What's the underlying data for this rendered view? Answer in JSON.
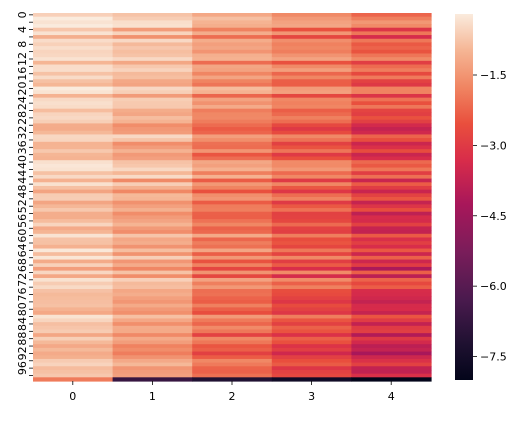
{
  "chart_data": {
    "type": "heatmap",
    "title": "",
    "xlabel": "",
    "ylabel": "",
    "x_categories": [
      "0",
      "1",
      "2",
      "3",
      "4"
    ],
    "y_tick_labels": [
      "0",
      "4",
      "8",
      "12",
      "16",
      "20",
      "24",
      "28",
      "32",
      "36",
      "40",
      "44",
      "48",
      "52",
      "56",
      "60",
      "64",
      "68",
      "72",
      "76",
      "80",
      "84",
      "88",
      "92",
      "96"
    ],
    "n_rows": 100,
    "colorbar": {
      "vmin": -8.0,
      "vmax": -0.2,
      "ticks": [
        -1.5,
        -3.0,
        -4.5,
        -6.0,
        -7.5
      ],
      "tick_labels": [
        "−1.5",
        "−3.0",
        "−4.5",
        "−6.0",
        "−7.5"
      ]
    },
    "colormap": "rocket",
    "column_profiles": [
      {
        "column": "0",
        "typical_value": -0.6,
        "last_row_value": -1.9
      },
      {
        "column": "1",
        "typical_value": -0.9,
        "last_row_value": -6.7
      },
      {
        "column": "2",
        "typical_value": -1.5,
        "last_row_value": -7.2
      },
      {
        "column": "3",
        "typical_value": -1.9,
        "last_row_value": -7.6
      },
      {
        "column": "4",
        "typical_value": -2.4,
        "last_row_value": -8.0
      }
    ]
  }
}
